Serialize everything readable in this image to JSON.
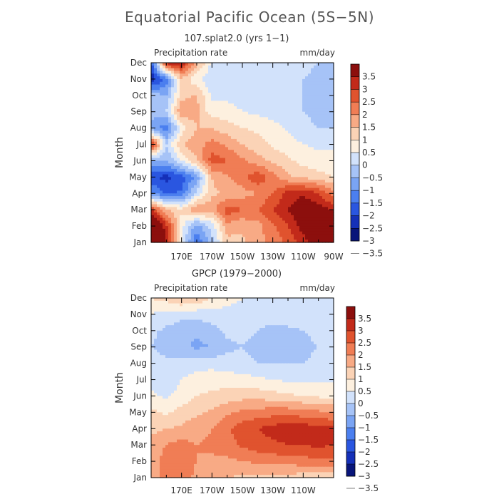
{
  "title": "Equatorial Pacific Ocean (5S−5N)",
  "colors": {
    "levels": [
      "#08157a",
      "#1530b8",
      "#2a56e0",
      "#4b7fef",
      "#7aa4f4",
      "#a6c3f7",
      "#d2e2fb",
      "#fdf0df",
      "#fbd3b6",
      "#f8aa85",
      "#f07d55",
      "#e0532e",
      "#c22a1a",
      "#8c0f0d"
    ]
  },
  "chart_data": [
    {
      "type": "heatmap",
      "name": "model",
      "subtitle": "107.splat2.0 (yrs 1−1)",
      "var_label": "Precipitation rate",
      "units": "mm/day",
      "ylabel": "Month",
      "y_ticks": [
        "Jan",
        "Feb",
        "Mar",
        "Apr",
        "May",
        "Jun",
        "Jul",
        "Aug",
        "Sep",
        "Oct",
        "Nov",
        "Dec"
      ],
      "x_ticks": [
        "170E",
        "170W",
        "150W",
        "130W",
        "110W",
        "90W"
      ],
      "x_tick_lon": [
        170,
        190,
        210,
        230,
        250,
        270
      ],
      "x_range_lon": [
        150,
        270
      ],
      "colorbar_labels": [
        "3.5",
        "3",
        "2.5",
        "2",
        "1.5",
        "1",
        "0.5",
        "0",
        "−0.5",
        "−1",
        "−1.5",
        "−2",
        "−2.5",
        "−3",
        "−3.5"
      ],
      "grid": {
        "lon": [
          150,
          160,
          170,
          180,
          190,
          200,
          210,
          220,
          230,
          240,
          250,
          260,
          270
        ],
        "values": [
          [
            4.0,
            2.5,
            -0.5,
            -2.5,
            -1.2,
            0.3,
            0.4,
            0.8,
            1.2,
            1.6,
            2.2,
            3.0,
            3.6
          ],
          [
            3.8,
            2.2,
            -0.3,
            -1.8,
            -0.8,
            0.8,
            0.6,
            0.8,
            1.4,
            2.0,
            2.8,
            3.3,
            3.2
          ],
          [
            2.0,
            0.6,
            0.1,
            1.0,
            0.8,
            1.8,
            1.5,
            1.5,
            2.0,
            2.5,
            3.0,
            2.8,
            2.4
          ],
          [
            -2.0,
            -2.6,
            -2.4,
            -0.8,
            0.4,
            0.6,
            0.8,
            1.0,
            1.5,
            2.2,
            2.4,
            2.0,
            1.2
          ],
          [
            -2.8,
            -3.2,
            -2.8,
            -1.8,
            0.5,
            0.9,
            1.3,
            1.9,
            1.2,
            0.6,
            0.4,
            0.2,
            0.0
          ],
          [
            -1.5,
            -1.5,
            -0.5,
            0.5,
            1.8,
            1.5,
            1.1,
            0.7,
            0.4,
            0.1,
            -0.2,
            -0.3,
            -0.3
          ],
          [
            2.2,
            -1.0,
            0.5,
            0.8,
            1.2,
            0.9,
            0.5,
            0.2,
            -0.1,
            -0.3,
            -0.5,
            -0.6,
            -0.6
          ],
          [
            -1.6,
            -2.4,
            -0.3,
            0.5,
            0.5,
            0.2,
            0.0,
            -0.1,
            -0.3,
            -0.6,
            -0.8,
            -1.0,
            -1.0
          ],
          [
            -1.4,
            -1.0,
            1.0,
            0.6,
            -0.3,
            -0.2,
            -0.5,
            -0.6,
            -0.7,
            -0.8,
            -1.0,
            -1.2,
            -1.4
          ],
          [
            -1.2,
            -1.5,
            0.3,
            0.6,
            -0.6,
            -0.7,
            -0.8,
            -0.8,
            -0.8,
            -0.9,
            -1.0,
            -1.3,
            -1.5
          ],
          [
            -3.4,
            -2.4,
            0.4,
            -0.4,
            -0.9,
            -1.0,
            -1.0,
            -0.9,
            -0.9,
            -0.9,
            -1.0,
            -1.2,
            -1.2
          ],
          [
            -2.8,
            2.3,
            2.6,
            0.7,
            -0.6,
            -0.8,
            -0.8,
            -0.8,
            -0.8,
            -0.8,
            -0.8,
            -1.0,
            -1.0
          ]
        ]
      }
    },
    {
      "type": "heatmap",
      "name": "obs",
      "subtitle": "GPCP (1979−2000)",
      "var_label": "Precipitation rate",
      "units": "mm/day",
      "ylabel": "Month",
      "y_ticks": [
        "Jan",
        "Feb",
        "Mar",
        "Apr",
        "May",
        "Jun",
        "Jul",
        "Aug",
        "Sep",
        "Oct",
        "Nov",
        "Dec"
      ],
      "x_ticks": [
        "170E",
        "170W",
        "150W",
        "130W",
        "110W"
      ],
      "x_tick_lon": [
        170,
        190,
        210,
        230,
        250
      ],
      "x_range_lon": [
        150,
        270
      ],
      "colorbar_labels": [
        "3.5",
        "3",
        "2.5",
        "2",
        "1.5",
        "1",
        "0.5",
        "0",
        "−0.5",
        "−1",
        "−1.5",
        "−2",
        "−2.5",
        "−3",
        "−3.5"
      ],
      "grid": {
        "lon": [
          150,
          160,
          170,
          180,
          190,
          200,
          210,
          220,
          230,
          240,
          250,
          260,
          270
        ],
        "values": [
          [
            0.6,
            1.2,
            1.4,
            0.8,
            0.6,
            0.5,
            0.4,
            0.4,
            0.3,
            0.3,
            0.2,
            0.1,
            0.1
          ],
          [
            0.7,
            1.3,
            1.5,
            1.0,
            0.9,
            0.9,
            1.0,
            1.1,
            1.2,
            1.2,
            1.3,
            1.4,
            1.4
          ],
          [
            0.6,
            1.0,
            1.2,
            1.0,
            1.1,
            1.3,
            1.6,
            1.8,
            1.9,
            2.0,
            2.0,
            2.1,
            2.0
          ],
          [
            0.4,
            0.5,
            0.6,
            0.8,
            1.0,
            1.4,
            1.8,
            2.0,
            2.2,
            2.3,
            2.3,
            2.2,
            2.1
          ],
          [
            0.1,
            -0.1,
            0.2,
            0.4,
            0.6,
            0.9,
            1.1,
            1.2,
            1.3,
            1.3,
            1.2,
            1.1,
            1.0
          ],
          [
            -0.4,
            -0.6,
            -0.3,
            0.0,
            0.1,
            0.2,
            0.3,
            0.3,
            0.2,
            0.1,
            0.0,
            -0.1,
            -0.2
          ],
          [
            -0.6,
            -0.8,
            -0.5,
            -0.3,
            -0.2,
            -0.2,
            -0.3,
            -0.4,
            -0.5,
            -0.6,
            -0.6,
            -0.6,
            -0.6
          ],
          [
            -0.7,
            -0.9,
            -0.8,
            -0.7,
            -0.7,
            -0.8,
            -0.9,
            -1.0,
            -1.0,
            -1.0,
            -1.0,
            -0.9,
            -0.9
          ],
          [
            -1.0,
            -1.2,
            -1.4,
            -1.6,
            -1.5,
            -1.1,
            -1.0,
            -1.1,
            -1.2,
            -1.2,
            -1.1,
            -1.0,
            -1.0
          ],
          [
            -0.9,
            -1.1,
            -1.3,
            -1.4,
            -1.2,
            -0.9,
            -0.9,
            -1.0,
            -1.2,
            -1.1,
            -1.0,
            -0.9,
            -0.9
          ],
          [
            -0.5,
            -0.7,
            -0.8,
            -0.8,
            -0.7,
            -0.6,
            -0.6,
            -0.7,
            -0.7,
            -0.7,
            -0.6,
            -0.6,
            -0.6
          ],
          [
            0.0,
            0.2,
            0.6,
            0.4,
            -0.1,
            -0.4,
            -0.5,
            -0.5,
            -0.5,
            -0.5,
            -0.5,
            -0.5,
            -0.5
          ]
        ]
      }
    }
  ]
}
